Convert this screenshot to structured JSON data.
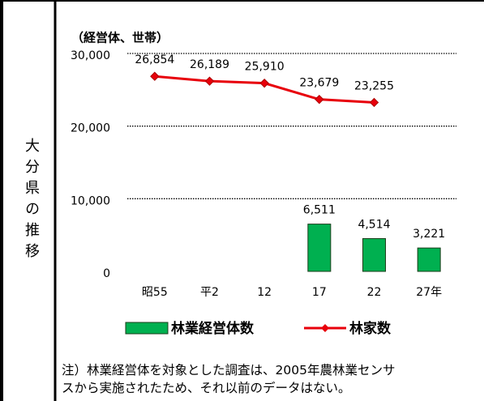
{
  "row_label": "大分県の推移",
  "note": [
    "注）林業経営体を対象とした調査は、2005年農林業センサ",
    "スから実施されたため、それ以前のデータはない。"
  ],
  "chart_data": {
    "type": "bar",
    "unit_label": "（経営体、世帯）",
    "categories": [
      "昭55",
      "平2",
      "12",
      "17",
      "22",
      "27年"
    ],
    "ylim": [
      0,
      30000
    ],
    "yticks": [
      0,
      {
        "value": 10000,
        "label": "10,000"
      },
      {
        "value": 20000,
        "label": "20,000"
      },
      {
        "value": 30000,
        "label": "30,000"
      }
    ],
    "grid": true,
    "series": [
      {
        "name": "林業経営体数",
        "type": "bar",
        "color": "#00b050",
        "values": [
          null,
          null,
          null,
          6511,
          4514,
          3221
        ],
        "value_labels": [
          null,
          null,
          null,
          "6,511",
          "4,514",
          "3,221"
        ]
      },
      {
        "name": "林家数",
        "type": "line",
        "color": "#e8000b",
        "values": [
          26854,
          26189,
          25910,
          23679,
          23255,
          null
        ],
        "value_labels": [
          "26,854",
          "26,189",
          "25,910",
          "23,679",
          "23,255",
          null
        ]
      }
    ]
  }
}
